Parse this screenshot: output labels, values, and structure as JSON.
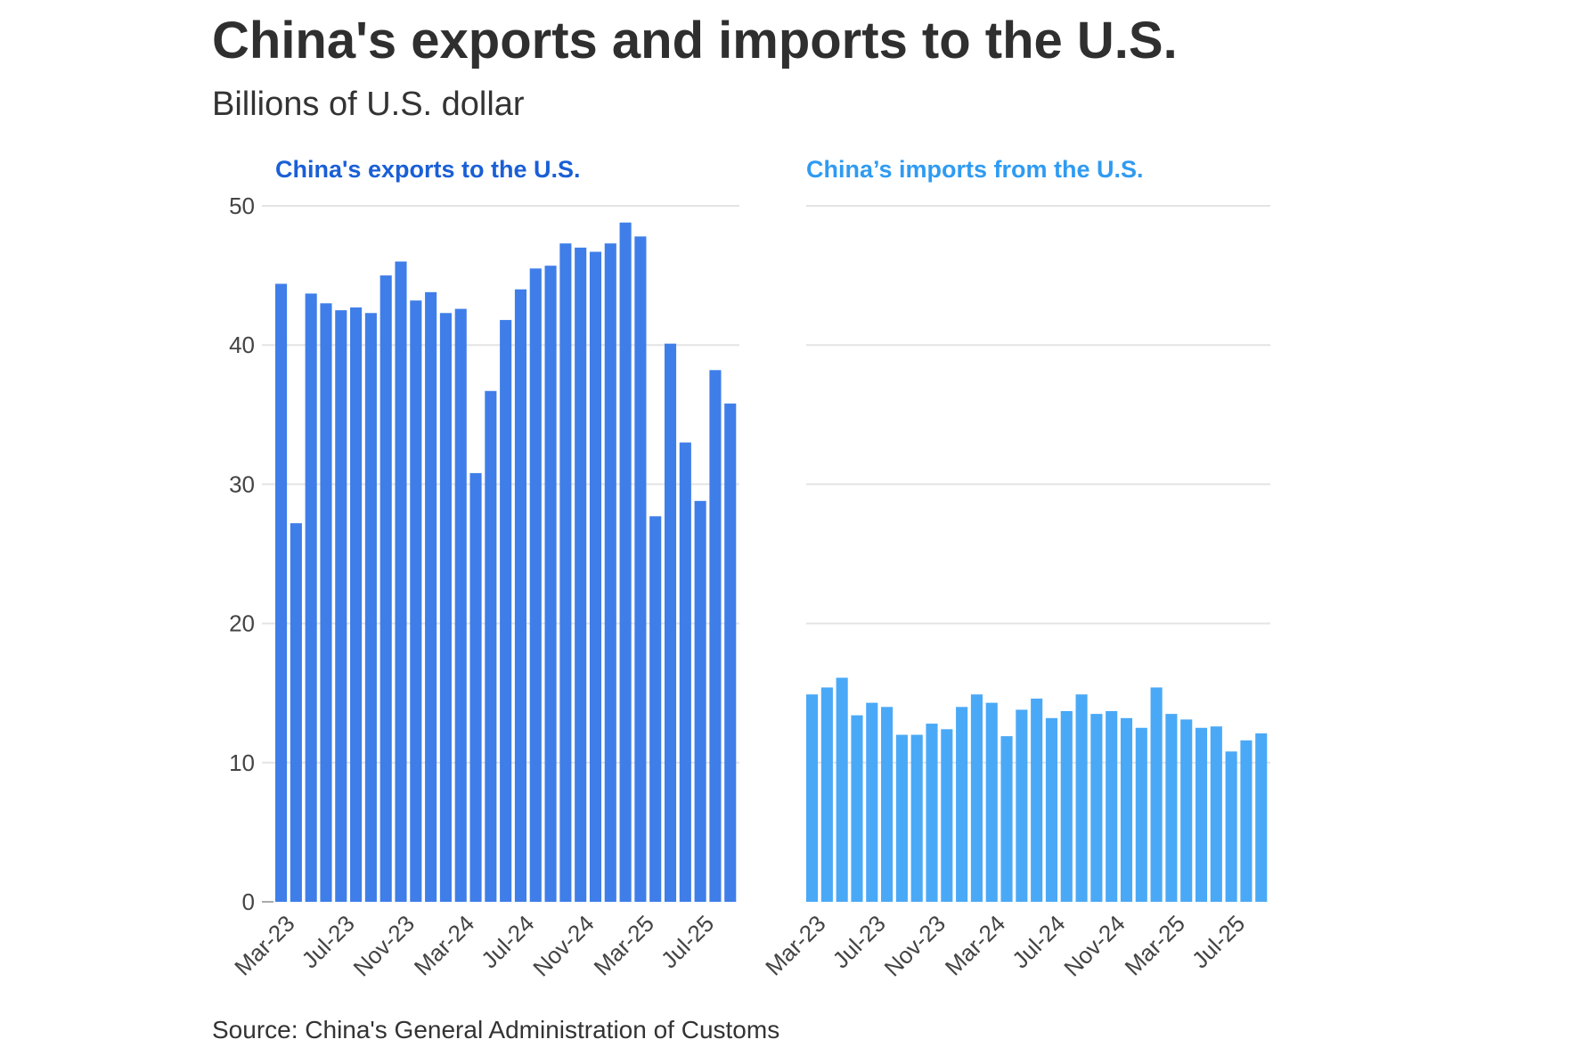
{
  "title": "China's exports and imports to the U.S.",
  "subtitle": "Billions of U.S. dollar",
  "source": "Source: China's General Administration of Customs",
  "colors": {
    "exports": "#3f7ee9",
    "exports_title": "#1a5fd6",
    "imports": "#4aa9f7",
    "imports_title": "#2f9bf2",
    "grid": "#e4e4e4",
    "axis_text": "#444444"
  },
  "chart_data": [
    {
      "type": "bar",
      "title": "China's exports to the U.S.",
      "ylim": [
        0,
        50
      ],
      "yticks": [
        0,
        10,
        20,
        30,
        40,
        50
      ],
      "grid": true,
      "categories": [
        "Feb-23",
        "Mar-23",
        "Apr-23",
        "May-23",
        "Jun-23",
        "Jul-23",
        "Aug-23",
        "Sep-23",
        "Oct-23",
        "Nov-23",
        "Dec-23",
        "Jan-24",
        "Feb-24",
        "Mar-24",
        "Apr-24",
        "May-24",
        "Jun-24",
        "Jul-24",
        "Aug-24",
        "Sep-24",
        "Oct-24",
        "Nov-24",
        "Dec-24",
        "Jan-25",
        "Feb-25",
        "Mar-25",
        "Apr-25",
        "May-25",
        "Jun-25",
        "Jul-25",
        "Aug-25"
      ],
      "xtick_labels": [
        "Mar-23",
        "Jul-23",
        "Nov-23",
        "Mar-24",
        "Jul-24",
        "Nov-24",
        "Mar-25",
        "Jul-25"
      ],
      "values": [
        44.4,
        27.2,
        43.7,
        43.0,
        42.5,
        42.7,
        42.3,
        45.0,
        46.0,
        43.2,
        43.8,
        42.3,
        42.6,
        30.8,
        36.7,
        41.8,
        44.0,
        45.5,
        45.7,
        47.3,
        47.0,
        46.7,
        47.3,
        48.8,
        47.8,
        27.7,
        40.1,
        33.0,
        28.8,
        38.2,
        35.8
      ]
    },
    {
      "type": "bar",
      "title": "China’s imports from the U.S.",
      "ylim": [
        0,
        50
      ],
      "yticks": [
        0,
        10,
        20,
        30,
        40,
        50
      ],
      "grid": true,
      "categories": [
        "Feb-23",
        "Mar-23",
        "Apr-23",
        "May-23",
        "Jun-23",
        "Jul-23",
        "Aug-23",
        "Sep-23",
        "Oct-23",
        "Nov-23",
        "Dec-23",
        "Jan-24",
        "Feb-24",
        "Mar-24",
        "Apr-24",
        "May-24",
        "Jun-24",
        "Jul-24",
        "Aug-24",
        "Sep-24",
        "Oct-24",
        "Nov-24",
        "Dec-24",
        "Jan-25",
        "Feb-25",
        "Mar-25",
        "Apr-25",
        "May-25",
        "Jun-25",
        "Jul-25",
        "Aug-25"
      ],
      "xtick_labels": [
        "Mar-23",
        "Jul-23",
        "Nov-23",
        "Mar-24",
        "Jul-24",
        "Nov-24",
        "Mar-25",
        "Jul-25"
      ],
      "values": [
        14.9,
        15.4,
        16.1,
        13.4,
        14.3,
        14.0,
        12.0,
        12.0,
        12.8,
        12.4,
        14.0,
        14.9,
        14.3,
        11.9,
        13.8,
        14.6,
        13.2,
        13.7,
        14.9,
        13.5,
        13.7,
        13.2,
        12.5,
        15.4,
        13.5,
        13.1,
        12.5,
        12.6,
        10.8,
        11.6,
        12.1
      ]
    }
  ]
}
